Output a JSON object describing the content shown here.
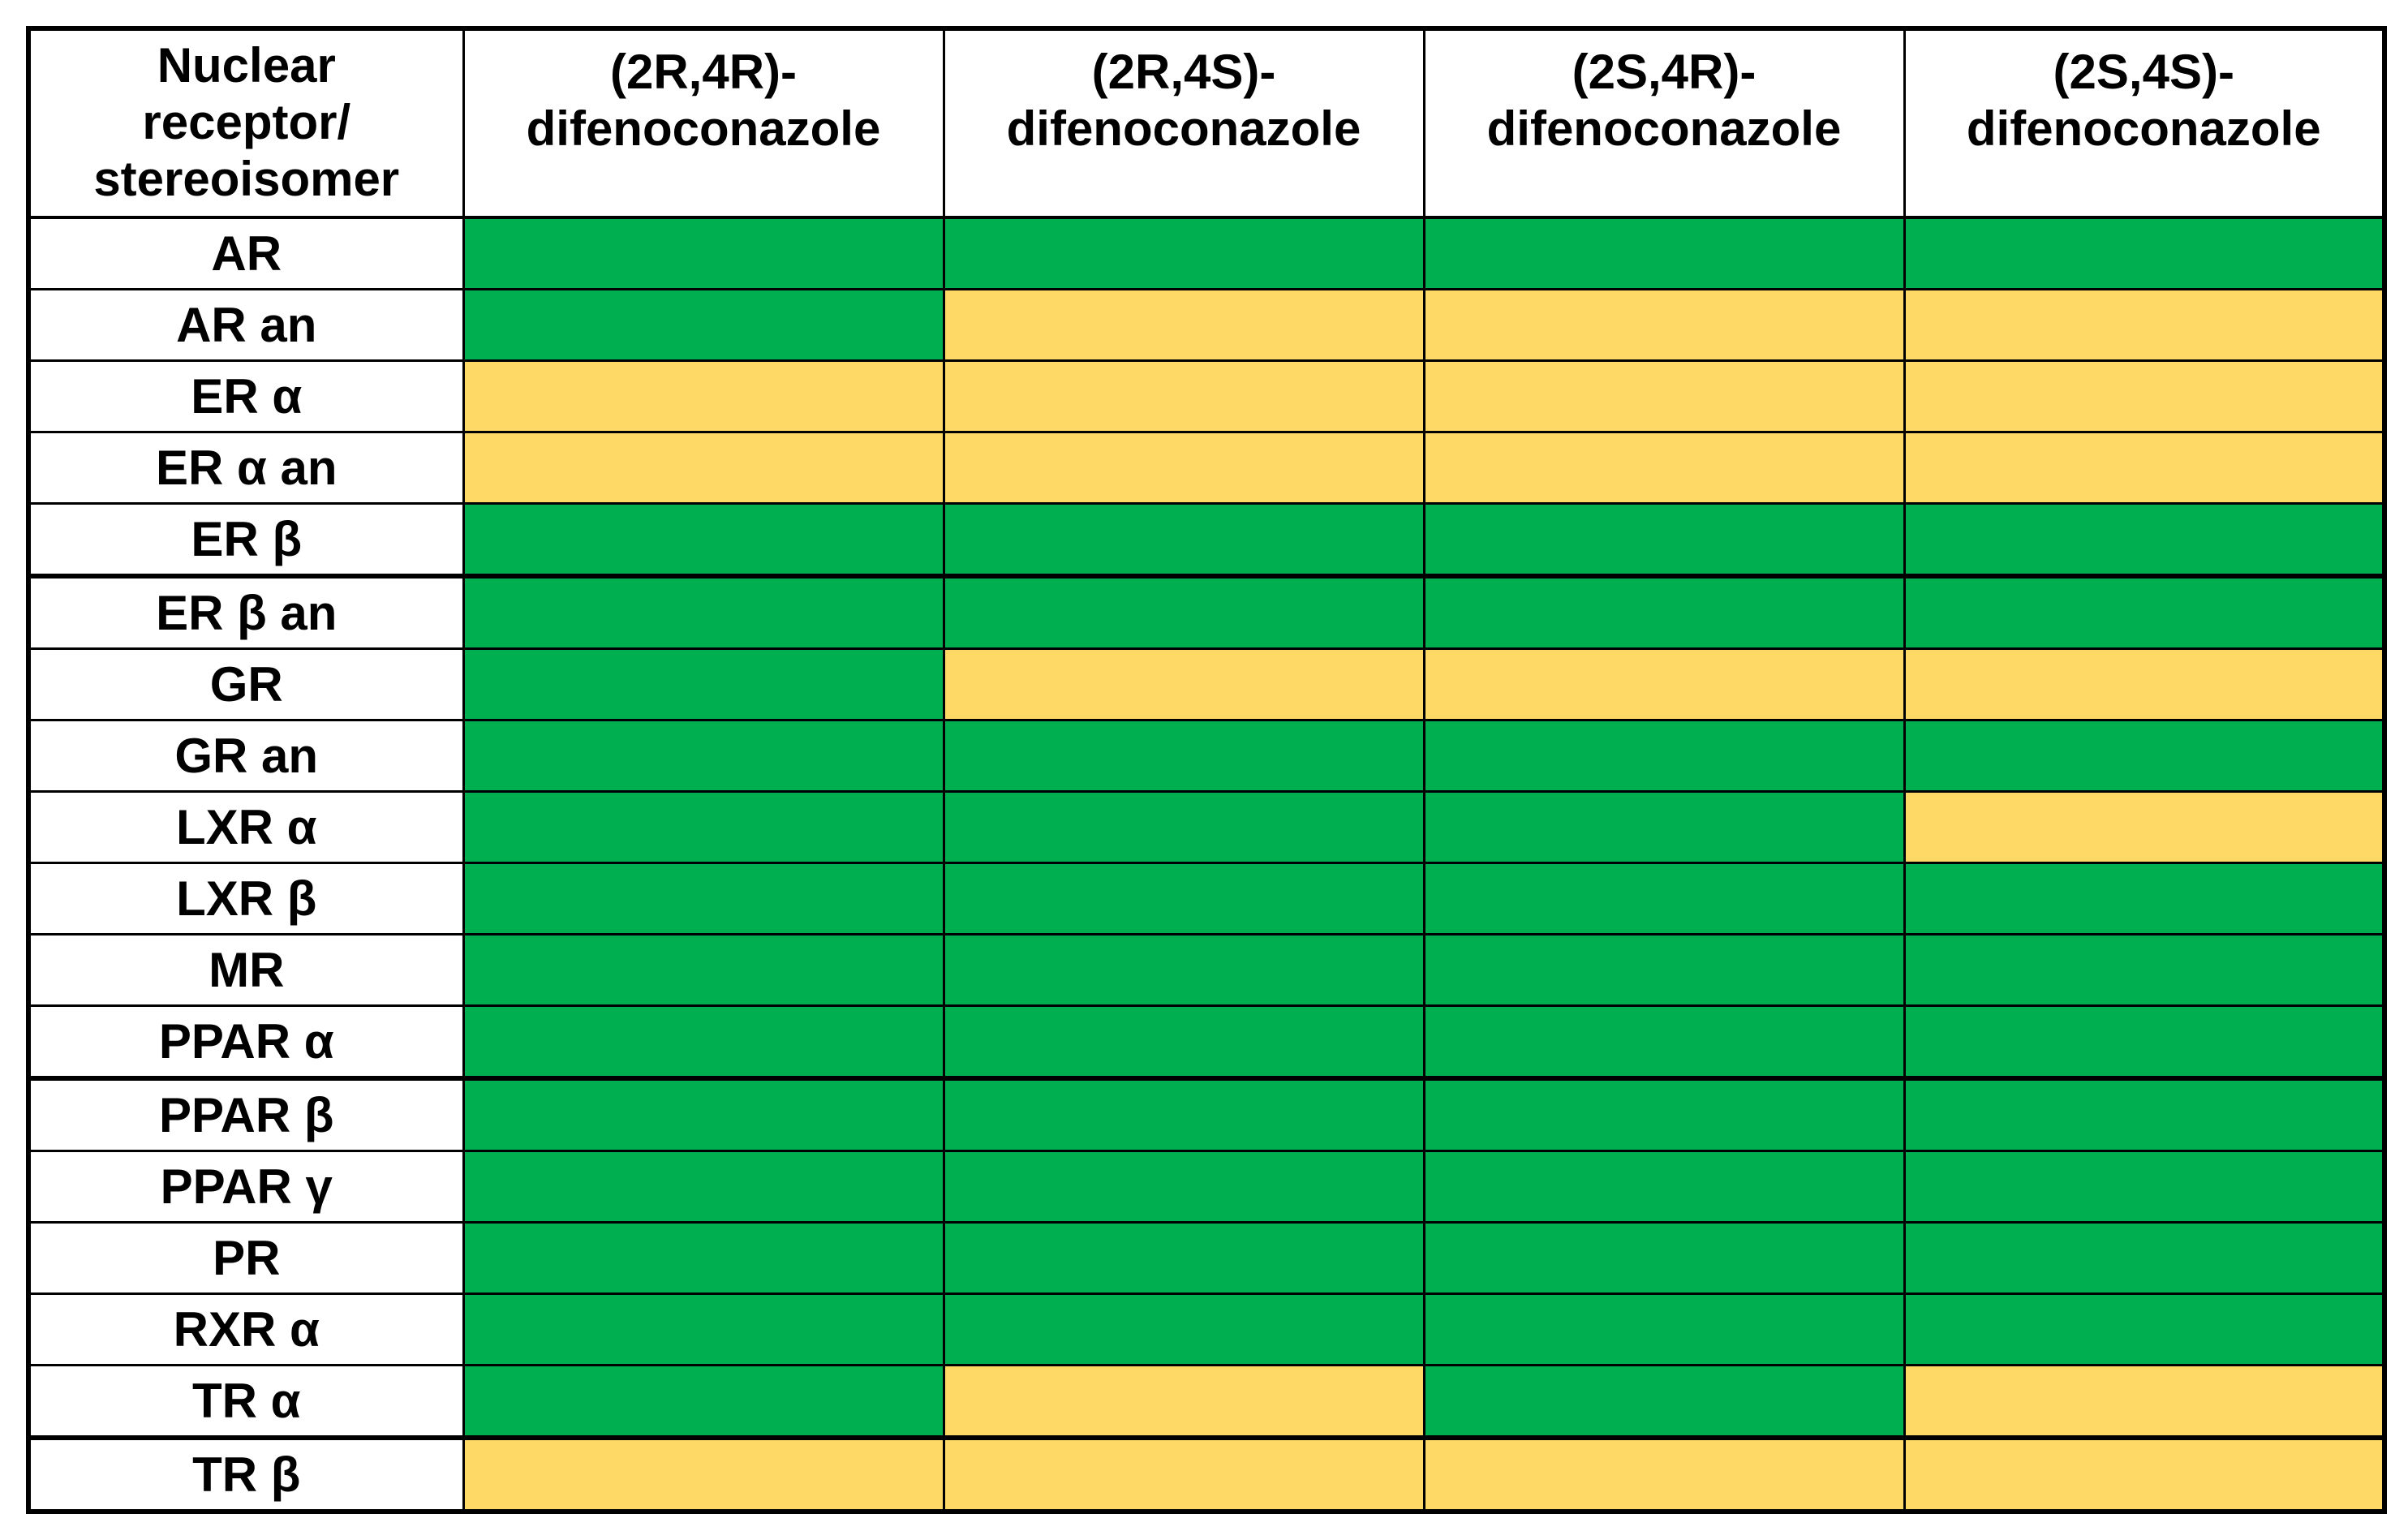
{
  "chart_data": {
    "type": "heatmap",
    "description": "Activity matrix of nuclear receptors versus difenoconazole stereoisomers; cells are color-coded with no numeric values shown",
    "columns": [
      "Nuclear\nreceptor/\nstereoisomer",
      "(2R,4R)-\ndifenoconazole",
      "(2R,4S)-\ndifenoconazole",
      "(2S,4R)-\ndifenoconazole",
      "(2S,4S)-\ndifenoconazole"
    ],
    "rows": [
      {
        "label": "AR",
        "cells": [
          "green",
          "green",
          "green",
          "green"
        ]
      },
      {
        "label": "AR an",
        "cells": [
          "green",
          "yellow",
          "yellow",
          "yellow"
        ]
      },
      {
        "label": "ER α",
        "cells": [
          "yellow",
          "yellow",
          "yellow",
          "yellow"
        ]
      },
      {
        "label": "ER α an",
        "cells": [
          "yellow",
          "yellow",
          "yellow",
          "yellow"
        ]
      },
      {
        "label": "ER β",
        "cells": [
          "green",
          "green",
          "green",
          "green"
        ],
        "section_end": true
      },
      {
        "label": "ER β an",
        "cells": [
          "green",
          "green",
          "green",
          "green"
        ]
      },
      {
        "label": "GR",
        "cells": [
          "green",
          "yellow",
          "yellow",
          "yellow"
        ]
      },
      {
        "label": "GR an",
        "cells": [
          "green",
          "green",
          "green",
          "green"
        ]
      },
      {
        "label": "LXR α",
        "cells": [
          "green",
          "green",
          "green",
          "yellow"
        ]
      },
      {
        "label": "LXR β",
        "cells": [
          "green",
          "green",
          "green",
          "green"
        ]
      },
      {
        "label": "MR",
        "cells": [
          "green",
          "green",
          "green",
          "green"
        ]
      },
      {
        "label": "PPAR α",
        "cells": [
          "green",
          "green",
          "green",
          "green"
        ],
        "section_end": true
      },
      {
        "label": "PPAR β",
        "cells": [
          "green",
          "green",
          "green",
          "green"
        ]
      },
      {
        "label": "PPAR γ",
        "cells": [
          "green",
          "green",
          "green",
          "green"
        ]
      },
      {
        "label": "PR",
        "cells": [
          "green",
          "green",
          "green",
          "green"
        ]
      },
      {
        "label": "RXR α",
        "cells": [
          "green",
          "green",
          "green",
          "green"
        ]
      },
      {
        "label": "TR α",
        "cells": [
          "green",
          "yellow",
          "green",
          "yellow"
        ],
        "section_end": true
      },
      {
        "label": "TR β",
        "cells": [
          "yellow",
          "yellow",
          "yellow",
          "yellow"
        ]
      }
    ],
    "palette": {
      "green": "#00B050",
      "yellow": "#FFD966"
    },
    "layout_hints": {
      "legend_position": "none",
      "grid": "black cell borders",
      "column_count": 5,
      "row_count": 18
    }
  }
}
